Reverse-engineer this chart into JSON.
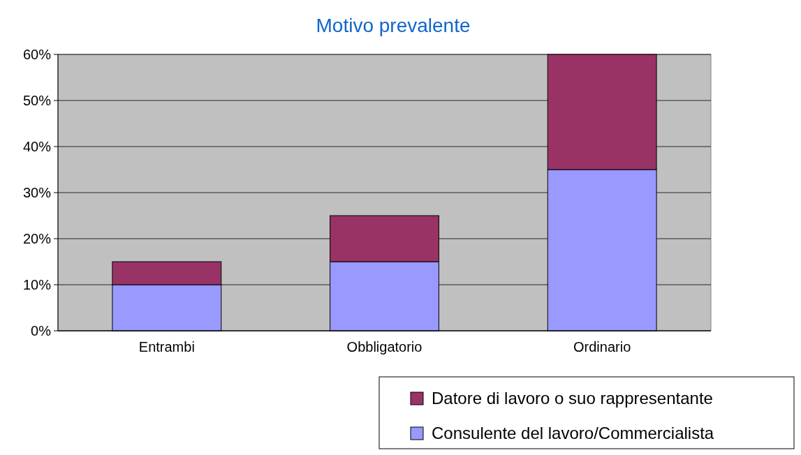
{
  "chart_data": {
    "type": "bar",
    "title": "Motivo prevalente",
    "categories": [
      "Entrambi",
      "Obbligatorio",
      "Ordinario"
    ],
    "stacked": true,
    "series": [
      {
        "name": "Consulente del lavoro/Commercialista",
        "color": "#9999ff",
        "values": [
          10,
          15,
          35
        ]
      },
      {
        "name": "Datore di lavoro o suo rappresentante",
        "color": "#993366",
        "values": [
          5,
          10,
          25
        ]
      }
    ],
    "ylim": [
      0,
      60
    ],
    "yticks": [
      {
        "value": 0,
        "label": "0%"
      },
      {
        "value": 10,
        "label": "10%"
      },
      {
        "value": 20,
        "label": "20%"
      },
      {
        "value": 30,
        "label": "30%"
      },
      {
        "value": 40,
        "label": "40%"
      },
      {
        "value": 50,
        "label": "50%"
      },
      {
        "value": 60,
        "label": "60%"
      }
    ],
    "grid": "y",
    "legend": "bottom right"
  }
}
